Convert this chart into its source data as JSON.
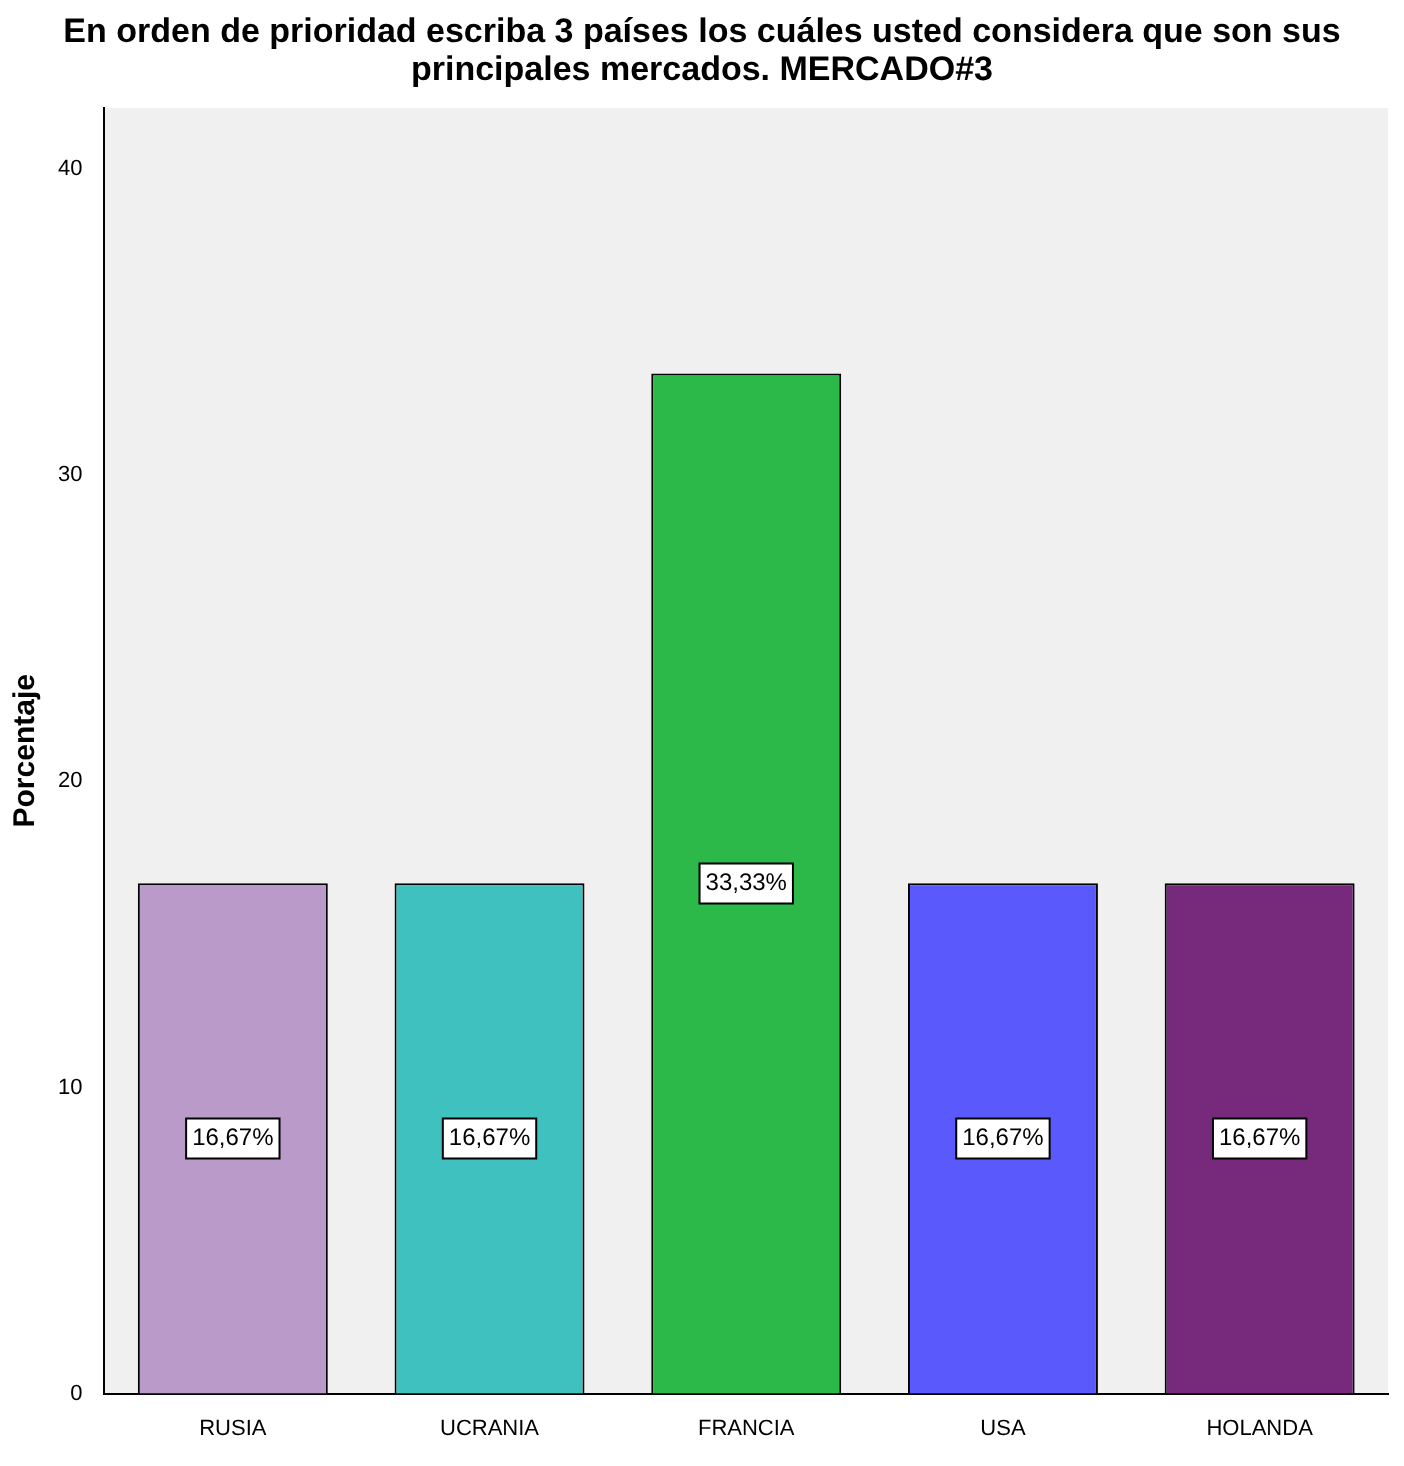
{
  "chart_data": {
    "type": "bar",
    "title": "En orden de prioridad escriba 3 países los cuáles usted considera que  son sus principales mercados. MERCADO#3",
    "ylabel": "Porcentaje",
    "categories": [
      "RUSIA",
      "UCRANIA",
      "FRANCIA",
      "USA",
      "HOLANDA"
    ],
    "values": [
      16.67,
      16.67,
      33.33,
      16.67,
      16.67
    ],
    "colors": [
      "#b99ac9",
      "#3fc1c0",
      "#2db84a",
      "#5a5afc",
      "#772a7c"
    ],
    "value_labels": [
      "16,67%",
      "16,67%",
      "33,33%",
      "16,67%",
      "16,67%"
    ],
    "ylim": [
      0,
      42
    ],
    "yticks": [
      0,
      10,
      20,
      30,
      40
    ],
    "grid": false,
    "legend": false
  }
}
